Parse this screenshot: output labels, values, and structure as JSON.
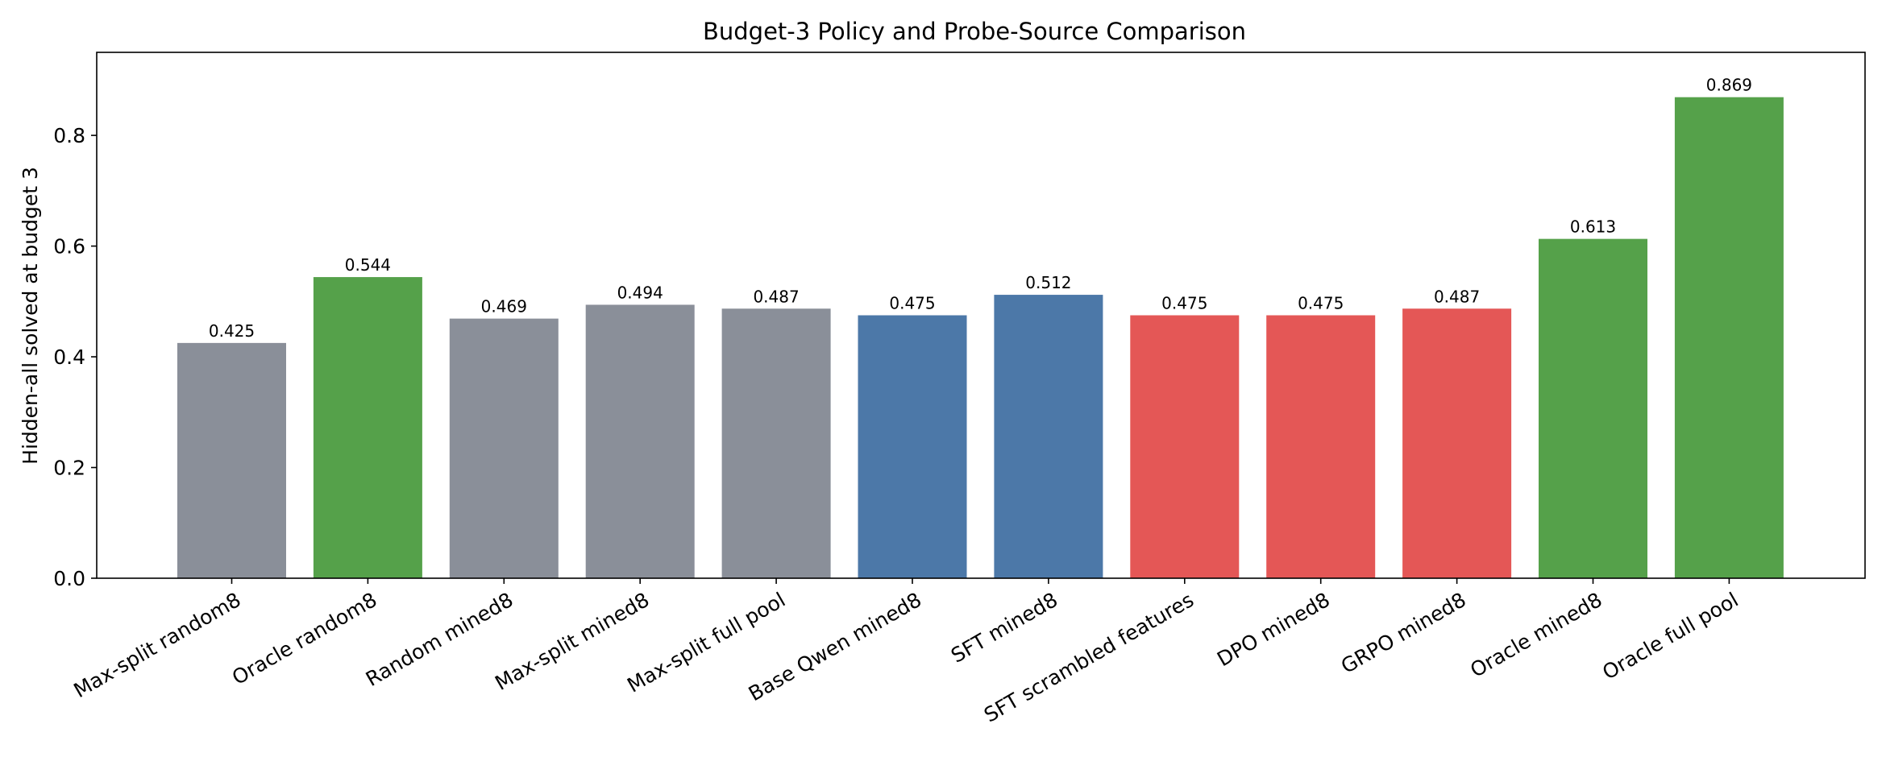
{
  "chart_data": {
    "type": "bar",
    "title": "Budget-3 Policy and Probe-Source Comparison",
    "xlabel": "",
    "ylabel": "Hidden-all solved at budget 3",
    "ylim": [
      0,
      0.95
    ],
    "yticks": [
      "0.0",
      "0.2",
      "0.4",
      "0.6",
      "0.8"
    ],
    "ytick_values": [
      0,
      0.2,
      0.4,
      0.6,
      0.8
    ],
    "grid": false,
    "categories": [
      "Max-split random8",
      "Oracle random8",
      "Random mined8",
      "Max-split mined8",
      "Max-split full pool",
      "Base Qwen mined8",
      "SFT mined8",
      "SFT scrambled features",
      "DPO mined8",
      "GRPO mined8",
      "Oracle mined8",
      "Oracle full pool"
    ],
    "values": [
      0.425,
      0.544,
      0.469,
      0.494,
      0.487,
      0.475,
      0.512,
      0.475,
      0.475,
      0.487,
      0.613,
      0.869
    ],
    "value_labels": [
      "0.425",
      "0.544",
      "0.469",
      "0.494",
      "0.487",
      "0.475",
      "0.512",
      "0.475",
      "0.475",
      "0.487",
      "0.613",
      "0.869"
    ],
    "bar_colors": [
      "#8a8f99",
      "#55a14a",
      "#8a8f99",
      "#8a8f99",
      "#8a8f99",
      "#4c78a8",
      "#4c78a8",
      "#e45756",
      "#e45756",
      "#e45756",
      "#55a14a",
      "#55a14a"
    ]
  }
}
